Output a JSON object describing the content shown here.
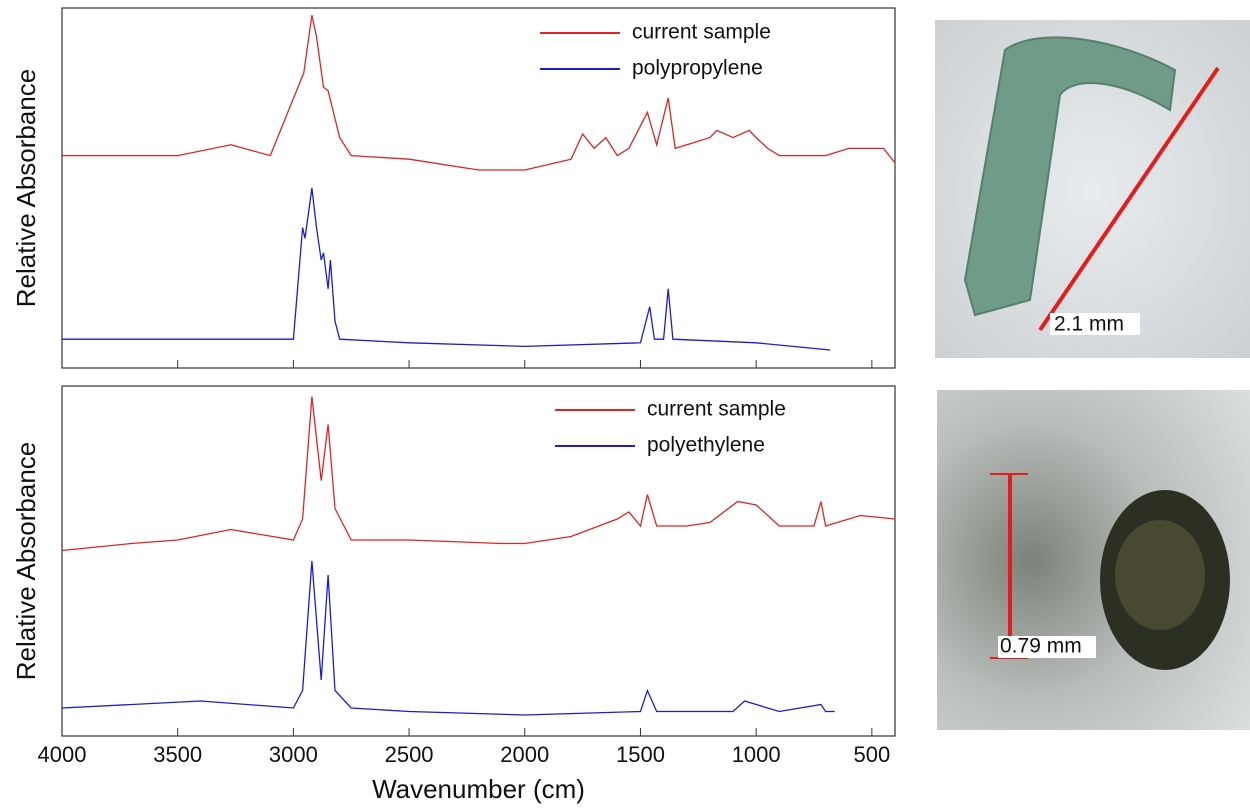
{
  "chart_data": [
    {
      "type": "line",
      "y_label": "Relative Absorbance",
      "xlim": [
        4000,
        400
      ],
      "ylim": [
        0,
        1
      ],
      "series": [
        {
          "name": "current sample",
          "color": "#e02424",
          "x": [
            4000,
            3700,
            3500,
            3270,
            3100,
            2955,
            2920,
            2900,
            2870,
            2850,
            2800,
            2750,
            2500,
            2200,
            2000,
            1800,
            1750,
            1700,
            1650,
            1600,
            1550,
            1470,
            1430,
            1380,
            1350,
            1200,
            1170,
            1100,
            1030,
            1000,
            950,
            900,
            850,
            700,
            600,
            450,
            400
          ],
          "values": [
            0.59,
            0.59,
            0.59,
            0.62,
            0.59,
            0.82,
            0.98,
            0.92,
            0.78,
            0.77,
            0.64,
            0.59,
            0.58,
            0.55,
            0.55,
            0.58,
            0.65,
            0.61,
            0.64,
            0.59,
            0.61,
            0.71,
            0.62,
            0.75,
            0.61,
            0.64,
            0.66,
            0.64,
            0.66,
            0.64,
            0.61,
            0.59,
            0.59,
            0.59,
            0.61,
            0.61,
            0.57
          ]
        },
        {
          "name": "polypropylene",
          "color": "#1c1cd2",
          "x": [
            4000,
            3500,
            3000,
            2960,
            2950,
            2920,
            2900,
            2880,
            2870,
            2850,
            2840,
            2820,
            2800,
            2500,
            2000,
            1500,
            1460,
            1440,
            1400,
            1380,
            1360,
            1000,
            680
          ],
          "values": [
            0.08,
            0.08,
            0.08,
            0.39,
            0.36,
            0.5,
            0.39,
            0.3,
            0.32,
            0.22,
            0.3,
            0.13,
            0.08,
            0.07,
            0.06,
            0.07,
            0.17,
            0.08,
            0.08,
            0.22,
            0.08,
            0.07,
            0.05
          ]
        }
      ]
    },
    {
      "type": "line",
      "y_label": "Relative Absorbance",
      "x_label": "Wavenumber (cm)",
      "xlim": [
        4000,
        400
      ],
      "ylim": [
        0,
        1
      ],
      "xticks": [
        4000,
        3500,
        3000,
        2500,
        2000,
        1500,
        1000,
        500
      ],
      "series": [
        {
          "name": "current sample",
          "color": "#e02424",
          "x": [
            4000,
            3700,
            3500,
            3270,
            3000,
            2960,
            2920,
            2880,
            2850,
            2820,
            2750,
            2500,
            2100,
            2000,
            1800,
            1600,
            1550,
            1500,
            1470,
            1430,
            1300,
            1200,
            1080,
            1000,
            900,
            750,
            720,
            700,
            550,
            400
          ],
          "values": [
            0.53,
            0.55,
            0.56,
            0.59,
            0.56,
            0.62,
            0.97,
            0.73,
            0.89,
            0.65,
            0.56,
            0.56,
            0.55,
            0.55,
            0.57,
            0.62,
            0.64,
            0.6,
            0.69,
            0.6,
            0.6,
            0.61,
            0.67,
            0.66,
            0.6,
            0.6,
            0.67,
            0.6,
            0.63,
            0.62
          ]
        },
        {
          "name": "polyethylene",
          "color": "#1c1cd2",
          "x": [
            4000,
            3400,
            3000,
            2960,
            2920,
            2880,
            2850,
            2820,
            2750,
            2500,
            2000,
            1500,
            1470,
            1430,
            1100,
            1050,
            900,
            720,
            700,
            660
          ],
          "values": [
            0.08,
            0.1,
            0.08,
            0.13,
            0.5,
            0.16,
            0.46,
            0.13,
            0.08,
            0.07,
            0.06,
            0.07,
            0.13,
            0.07,
            0.07,
            0.1,
            0.07,
            0.09,
            0.07,
            0.07
          ]
        }
      ]
    }
  ],
  "images": [
    {
      "scale_label": "2.1 mm"
    },
    {
      "scale_label": "0.79 mm"
    }
  ]
}
